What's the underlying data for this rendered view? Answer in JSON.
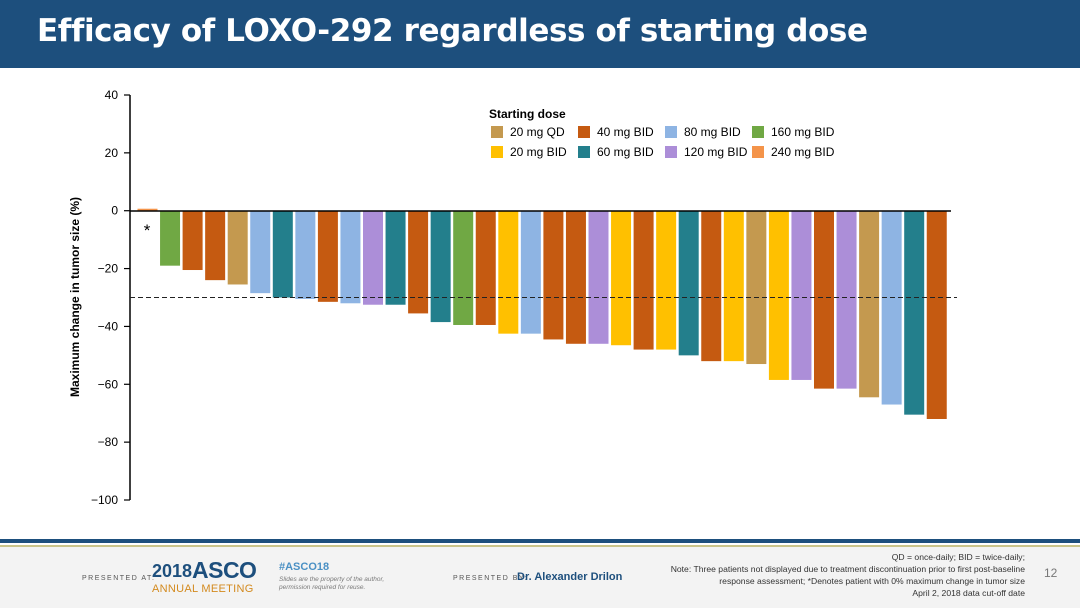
{
  "header": {
    "title": "Efficacy of LOXO-292 regardless of starting dose"
  },
  "chart_data": {
    "type": "bar",
    "title": "",
    "xlabel": "",
    "ylabel": "Maximum change in tumor size (%)",
    "ylim": [
      -100,
      40
    ],
    "yticks": [
      40,
      20,
      0,
      -20,
      -40,
      -60,
      -80,
      -100
    ],
    "ytick_labels": [
      "40",
      "20",
      "0",
      "−20",
      "−40",
      "−60",
      "−80",
      "−100"
    ],
    "reference_line": -30,
    "grid": false,
    "legend": {
      "title": "Starting dose",
      "position": "top-right",
      "entries": [
        {
          "label": "20 mg QD",
          "color": "#c4994f"
        },
        {
          "label": "40 mg BID",
          "color": "#c55a11"
        },
        {
          "label": "80 mg BID",
          "color": "#8eb4e3"
        },
        {
          "label": "160 mg BID",
          "color": "#70a844"
        },
        {
          "label": "20 mg BID",
          "color": "#ffc000"
        },
        {
          "label": "60 mg BID",
          "color": "#237f8c"
        },
        {
          "label": "120 mg BID",
          "color": "#ac8ed8"
        },
        {
          "label": "240 mg BID",
          "color": "#f4944a"
        }
      ]
    },
    "annotation": "*",
    "values": [
      0,
      -19,
      -20.5,
      -24,
      -25.5,
      -28.5,
      -30,
      -30.5,
      -31.5,
      -32,
      -32.5,
      -32.5,
      -35.5,
      -38.5,
      -39.5,
      -39.5,
      -42.5,
      -42.5,
      -44.5,
      -46,
      -46,
      -46.5,
      -48,
      -48,
      -50,
      -52,
      -52,
      -53,
      -58.5,
      -58.5,
      -61.5,
      -61.5,
      -64.5,
      -67,
      -70.5,
      -72
    ],
    "doses": [
      "240 mg BID",
      "160 mg BID",
      "40 mg BID",
      "40 mg BID",
      "20 mg QD",
      "80 mg BID",
      "60 mg BID",
      "80 mg BID",
      "40 mg BID",
      "80 mg BID",
      "120 mg BID",
      "60 mg BID",
      "40 mg BID",
      "60 mg BID",
      "160 mg BID",
      "40 mg BID",
      "20 mg BID",
      "80 mg BID",
      "40 mg BID",
      "40 mg BID",
      "120 mg BID",
      "20 mg BID",
      "40 mg BID",
      "20 mg BID",
      "60 mg BID",
      "40 mg BID",
      "20 mg BID",
      "20 mg QD",
      "20 mg BID",
      "120 mg BID",
      "40 mg BID",
      "120 mg BID",
      "20 mg QD",
      "80 mg BID",
      "60 mg BID",
      "40 mg BID"
    ]
  },
  "footer": {
    "presented_at": "PRESENTED AT:",
    "asco_year": "2018",
    "asco_name": "ASCO",
    "asco_sub": "ANNUAL MEETING",
    "hashtag": "#ASCO18",
    "slide_note": "Slides are the property of the author, permission required for reuse.",
    "presented_by": "PRESENTED BY:",
    "presenter": "Dr. Alexander Drilon",
    "note_line1": "QD = once-daily; BID = twice-daily;",
    "note_line2": "Note: Three patients not displayed due to treatment discontinuation prior to first post-baseline",
    "note_line3": "response assessment; *Denotes patient with 0% maximum change in tumor size",
    "note_line4": "April 2, 2018 data cut-off date",
    "page_number": "12"
  }
}
